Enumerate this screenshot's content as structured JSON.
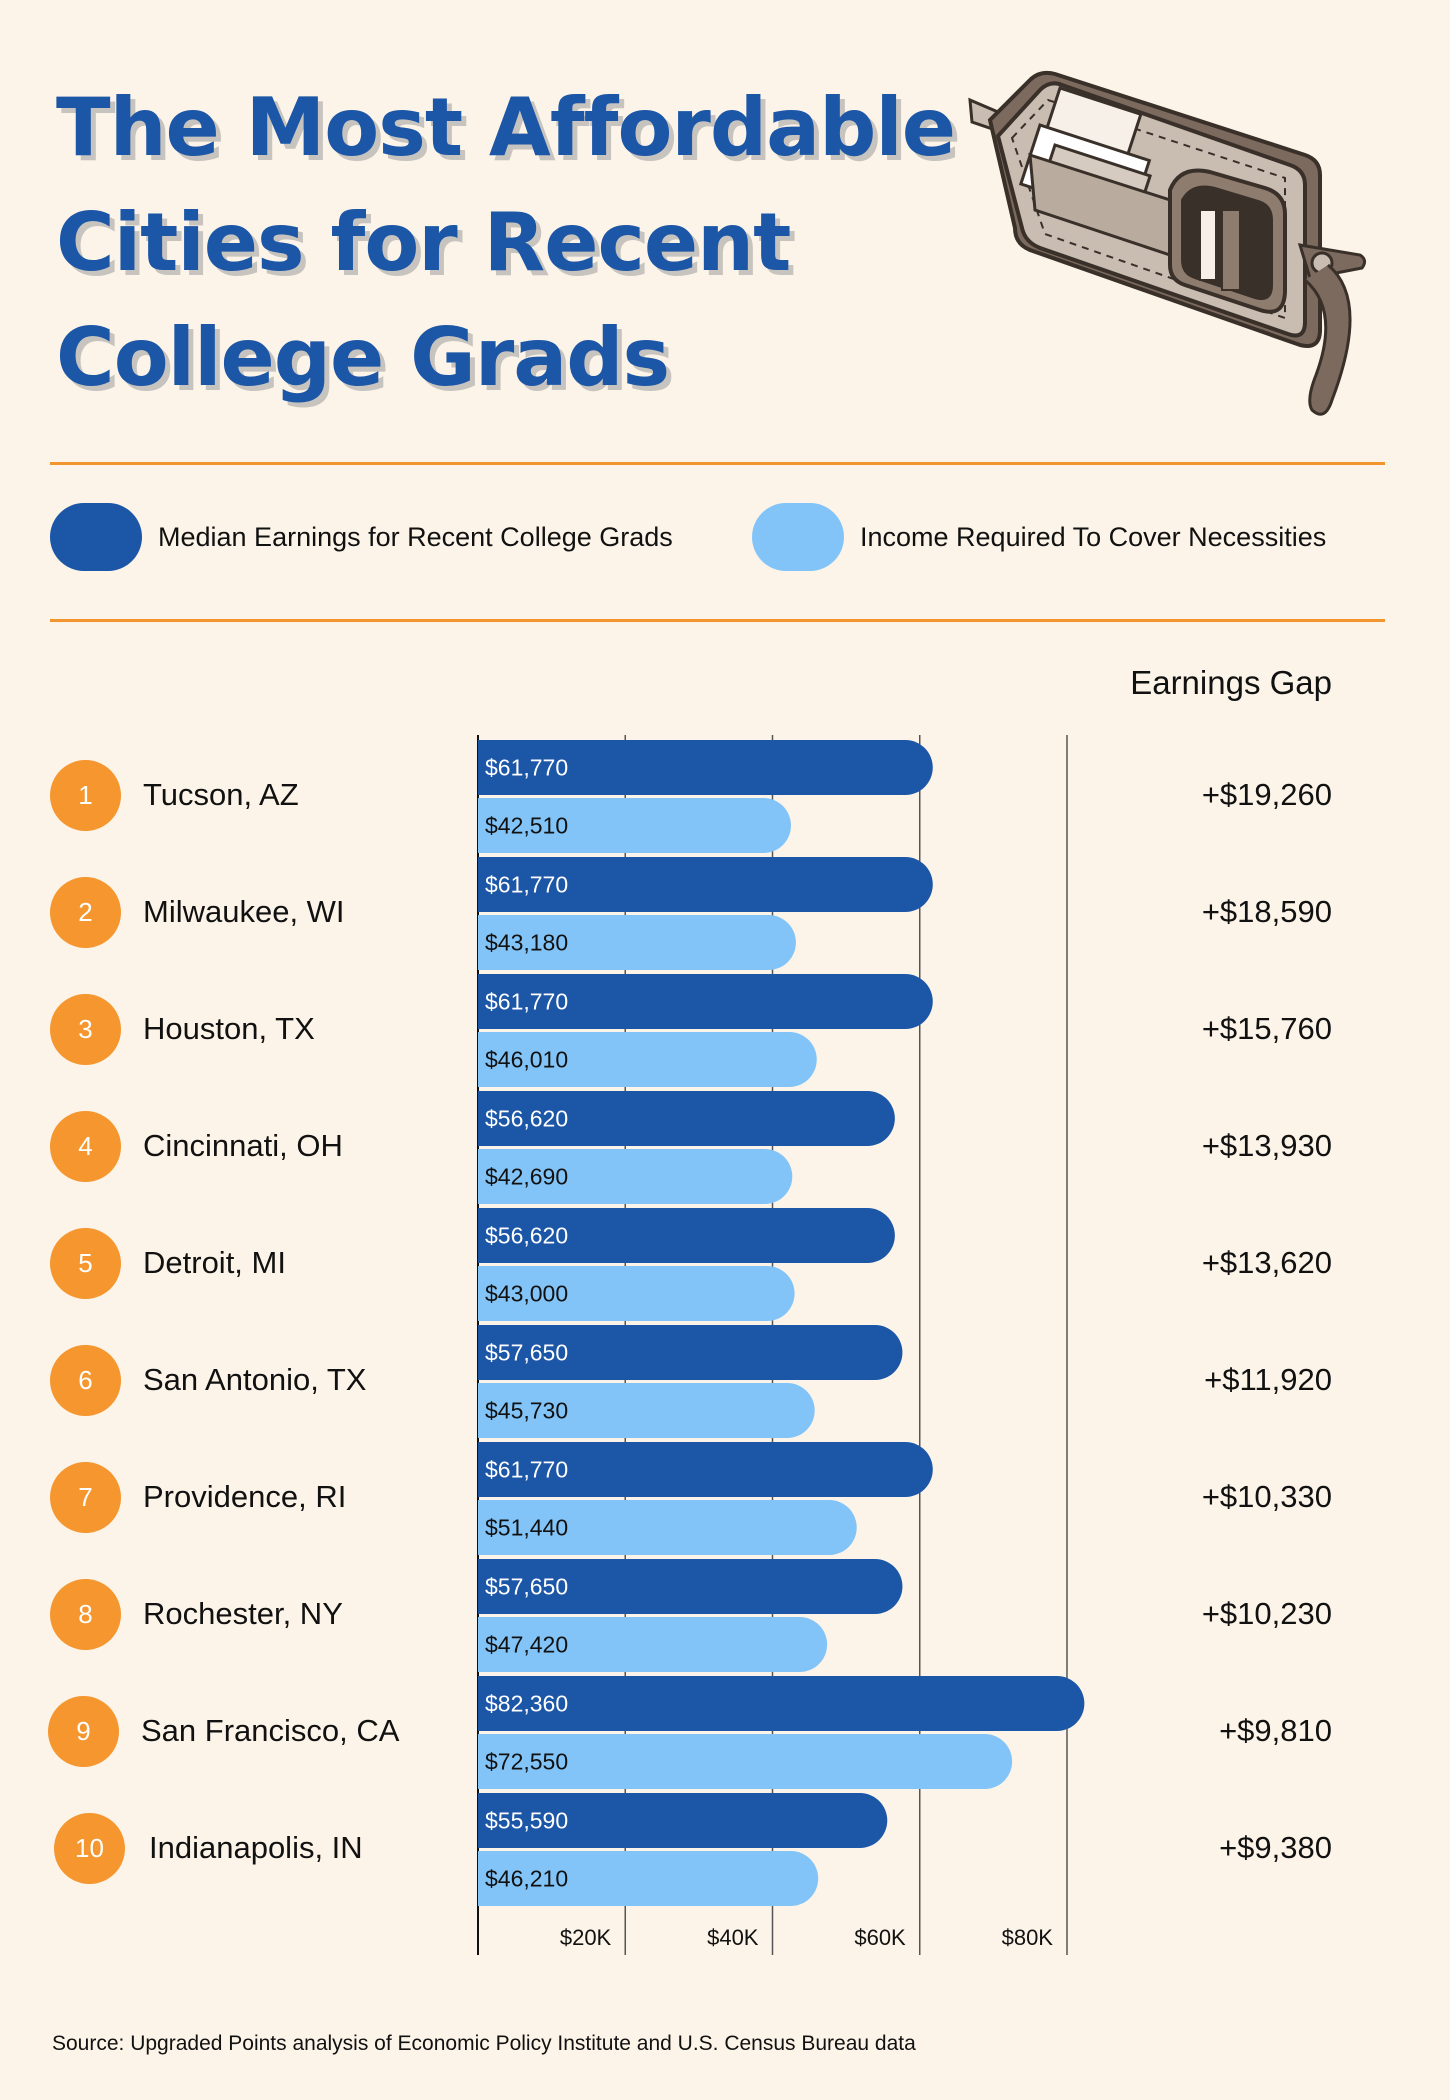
{
  "title": "The Most Affordable Cities for Recent College Grads",
  "legend": {
    "earnings_label": "Median Earnings for Recent College Grads",
    "required_label": "Income Required To Cover Necessities"
  },
  "gap_header": "Earnings Gap",
  "source": "Source: Upgraded Points analysis of Economic Policy Institute and U.S. Census Bureau data",
  "colors": {
    "earnings": "#1c56a6",
    "required": "#82c4f8",
    "accent": "#f5962f",
    "title": "#1c56a6",
    "background": "#fcf4e8"
  },
  "rows": [
    {
      "rank": "1",
      "city": "Tucson, AZ",
      "gap": "+$19,260"
    },
    {
      "rank": "2",
      "city": "Milwaukee, WI",
      "gap": "+$18,590"
    },
    {
      "rank": "3",
      "city": "Houston, TX",
      "gap": "+$15,760"
    },
    {
      "rank": "4",
      "city": "Cincinnati, OH",
      "gap": "+$13,930"
    },
    {
      "rank": "5",
      "city": "Detroit, MI",
      "gap": "+$13,620"
    },
    {
      "rank": "6",
      "city": "San Antonio, TX",
      "gap": "+$11,920"
    },
    {
      "rank": "7",
      "city": "Providence, RI",
      "gap": "+$10,330"
    },
    {
      "rank": "8",
      "city": "Rochester, NY",
      "gap": "+$10,230"
    },
    {
      "rank": "9",
      "city": "San Francisco, CA",
      "gap": "+$9,810"
    },
    {
      "rank": "10",
      "city": "Indianapolis, IN",
      "gap": "+$9,380"
    }
  ],
  "chart_data": {
    "type": "bar",
    "orientation": "horizontal",
    "title": "The Most Affordable Cities for Recent College Grads",
    "categories": [
      "Tucson, AZ",
      "Milwaukee, WI",
      "Houston, TX",
      "Cincinnati, OH",
      "Detroit, MI",
      "San Antonio, TX",
      "Providence, RI",
      "Rochester, NY",
      "San Francisco, CA",
      "Indianapolis, IN"
    ],
    "series": [
      {
        "name": "Median Earnings for Recent College Grads",
        "color": "#1c56a6",
        "values": [
          61770,
          61770,
          61770,
          56620,
          56620,
          57650,
          61770,
          57650,
          82360,
          55590
        ],
        "labels": [
          "$61,770",
          "$61,770",
          "$61,770",
          "$56,620",
          "$56,620",
          "$57,650",
          "$61,770",
          "$57,650",
          "$82,360",
          "$55,590"
        ]
      },
      {
        "name": "Income Required To Cover Necessities",
        "color": "#82c4f8",
        "values": [
          42510,
          43180,
          46010,
          42690,
          43000,
          45730,
          51440,
          47420,
          72550,
          46210
        ],
        "labels": [
          "$42,510",
          "$43,180",
          "$46,010",
          "$42,690",
          "$43,000",
          "$45,730",
          "$51,440",
          "$47,420",
          "$72,550",
          "$46,210"
        ]
      }
    ],
    "xlim": [
      0,
      80000
    ],
    "xticks": [
      20000,
      40000,
      60000,
      80000
    ],
    "xtick_labels": [
      "$20K",
      "$40K",
      "$60K",
      "$80K"
    ],
    "grid": true,
    "legend_position": "top"
  }
}
